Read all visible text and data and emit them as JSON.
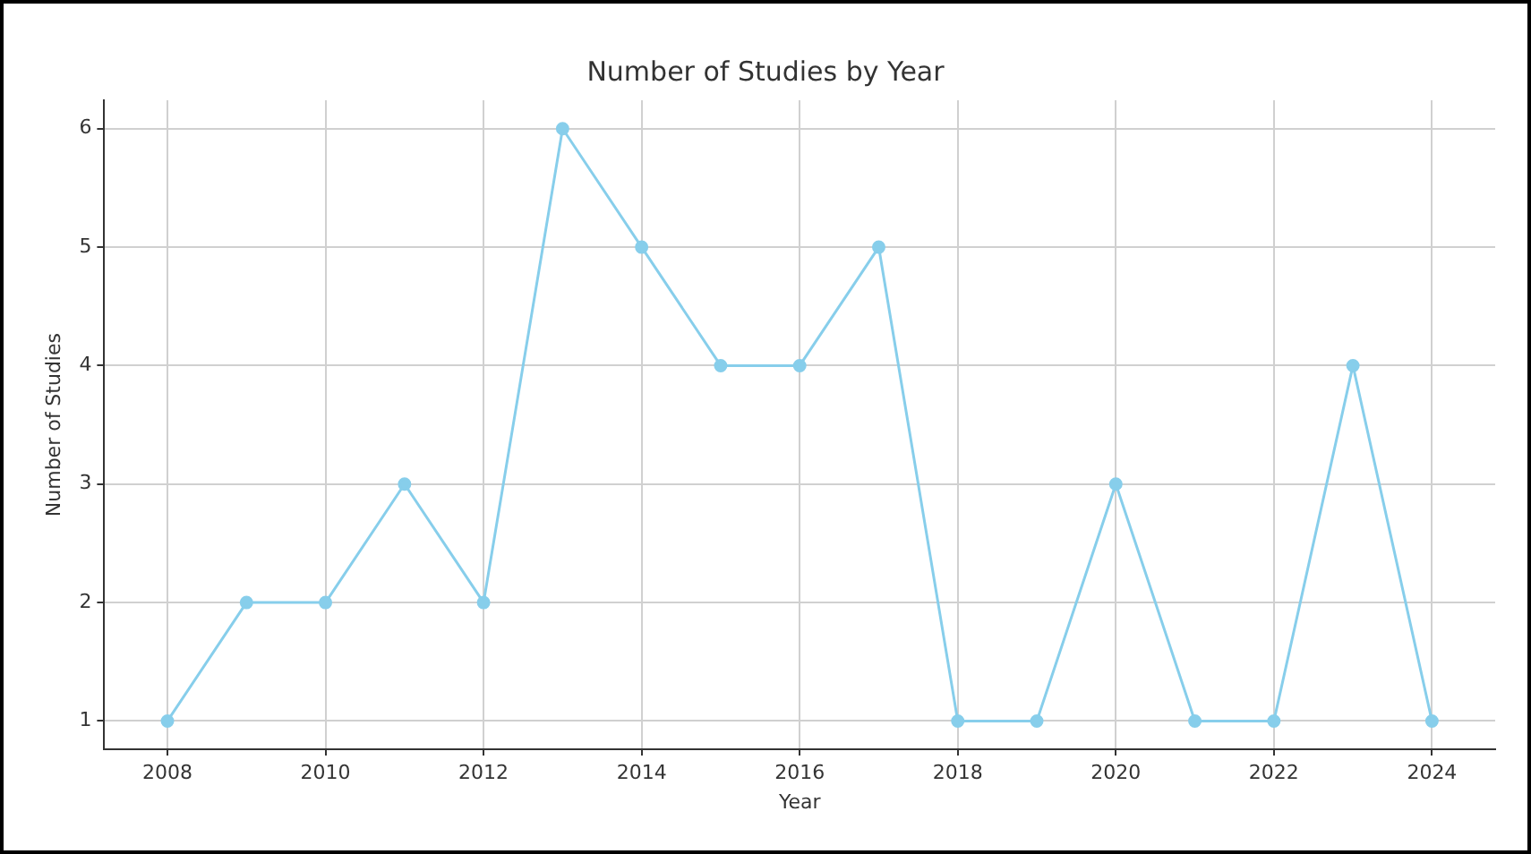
{
  "chart_data": {
    "type": "line",
    "title": "Number of Studies by Year",
    "xlabel": "Year",
    "ylabel": "Number of Studies",
    "x": [
      2008,
      2009,
      2010,
      2011,
      2012,
      2013,
      2014,
      2015,
      2016,
      2017,
      2018,
      2019,
      2020,
      2021,
      2022,
      2023,
      2024
    ],
    "series": [
      {
        "color": "#87ceeb",
        "values": [
          1,
          2,
          2,
          3,
          2,
          6,
          5,
          4,
          4,
          5,
          1,
          1,
          3,
          1,
          1,
          4,
          1
        ]
      }
    ],
    "xlim": [
      2007.2,
      2024.8
    ],
    "xticks": [
      2008,
      2010,
      2012,
      2014,
      2016,
      2018,
      2020,
      2022,
      2024
    ],
    "ylim": [
      0.76,
      6.24
    ],
    "yticks": [
      1,
      2,
      3,
      4,
      5,
      6
    ],
    "grid": true,
    "legend": false,
    "marker": "circle",
    "line_style": "solid"
  }
}
